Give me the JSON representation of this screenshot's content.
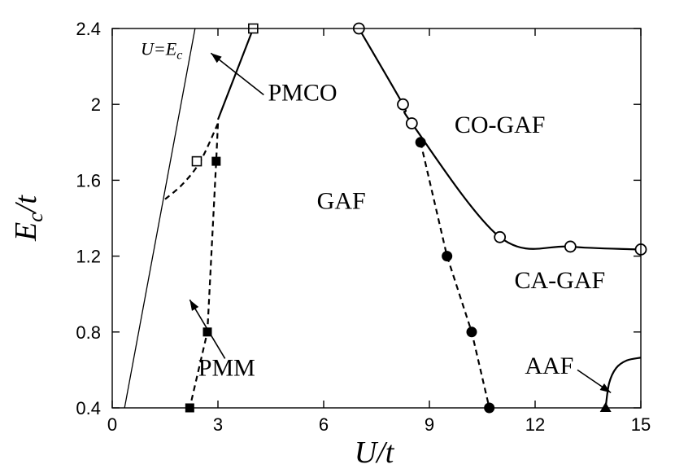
{
  "chart_data": {
    "type": "scatter",
    "title": "",
    "xlabel": "U/t",
    "ylabel": "E_c/t",
    "xlabel_text": "U/t",
    "ylabel_main": "E",
    "ylabel_sub": "c",
    "ylabel_tail": "/t",
    "xlim": [
      0,
      15
    ],
    "ylim": [
      0.4,
      2.4
    ],
    "xticks": [
      0,
      3,
      6,
      9,
      12,
      15
    ],
    "yticks": [
      0.4,
      0.8,
      1.2,
      1.6,
      2,
      2.4
    ],
    "xtick_labels": [
      "0",
      "3",
      "6",
      "9",
      "12",
      "15"
    ],
    "ytick_labels": [
      "0.4",
      "0.8",
      "1.2",
      "1.6",
      "2",
      "2.4"
    ],
    "grid": false,
    "legend": "none",
    "regions": [
      {
        "label": "GAF",
        "x": 6.5,
        "y": 1.45
      },
      {
        "label": "CO-GAF",
        "x": 11.0,
        "y": 1.85
      },
      {
        "label": "CA-GAF",
        "x": 12.7,
        "y": 1.03
      },
      {
        "label": "PMCO",
        "x": 5.4,
        "y": 2.02
      },
      {
        "label": "PMM",
        "x": 3.25,
        "y": 0.57
      },
      {
        "label": "AAF",
        "x": 12.4,
        "y": 0.58
      }
    ],
    "series": [
      {
        "kind": "line-open-circles",
        "style": "solid",
        "marker": "open-circle",
        "x": [
          7.0,
          8.25,
          8.5,
          11.0,
          13.0,
          15.0
        ],
        "y": [
          2.4,
          2.0,
          1.9,
          1.3,
          1.25,
          1.235
        ]
      },
      {
        "kind": "dashed-filled-circles",
        "style": "dashed",
        "marker": "filled-circle",
        "x": [
          8.75,
          9.5,
          10.2,
          10.7
        ],
        "y": [
          1.8,
          1.2,
          0.8,
          0.4
        ]
      },
      {
        "kind": "dashed-filled-squares",
        "style": "dashed",
        "marker": "filled-square",
        "x": [
          3.0,
          2.95,
          2.7,
          2.2
        ],
        "y": [
          1.9,
          1.7,
          0.8,
          0.4
        ]
      },
      {
        "kind": "solid-open-squares",
        "style": "solid",
        "marker": "open-square",
        "x": [
          3.0,
          4.0
        ],
        "y": [
          1.92,
          2.4
        ]
      },
      {
        "kind": "dashed-curve",
        "style": "dashed",
        "marker": "none",
        "x": [
          1.5,
          2.0,
          2.5,
          3.0
        ],
        "y": [
          1.5,
          1.58,
          1.7,
          1.9
        ]
      },
      {
        "kind": "open-square-point",
        "style": "none",
        "marker": "open-square",
        "x": [
          2.4
        ],
        "y": [
          1.7
        ]
      },
      {
        "kind": "aaf-boundary",
        "style": "solid",
        "marker": "none",
        "x": [
          14.0,
          14.1,
          14.3,
          14.6,
          15.0
        ],
        "y": [
          0.4,
          0.53,
          0.61,
          0.65,
          0.665
        ]
      },
      {
        "kind": "aaf-point",
        "style": "none",
        "marker": "filled-triangle",
        "x": [
          14.0
        ],
        "y": [
          0.4
        ]
      },
      {
        "kind": "U-equals-Ec",
        "label": "U=E",
        "label_sub": "c",
        "style": "thin",
        "marker": "none",
        "x": [
          0.35,
          2.35
        ],
        "y": [
          0.4,
          2.4
        ]
      }
    ],
    "arrows": [
      {
        "from": [
          4.3,
          2.05
        ],
        "to": [
          2.8,
          2.27
        ]
      },
      {
        "from": [
          3.2,
          0.66
        ],
        "to": [
          2.2,
          0.97
        ]
      },
      {
        "from": [
          13.2,
          0.6
        ],
        "to": [
          14.15,
          0.48
        ]
      }
    ],
    "line_label_pos": {
      "x": 1.4,
      "y": 2.26
    }
  }
}
